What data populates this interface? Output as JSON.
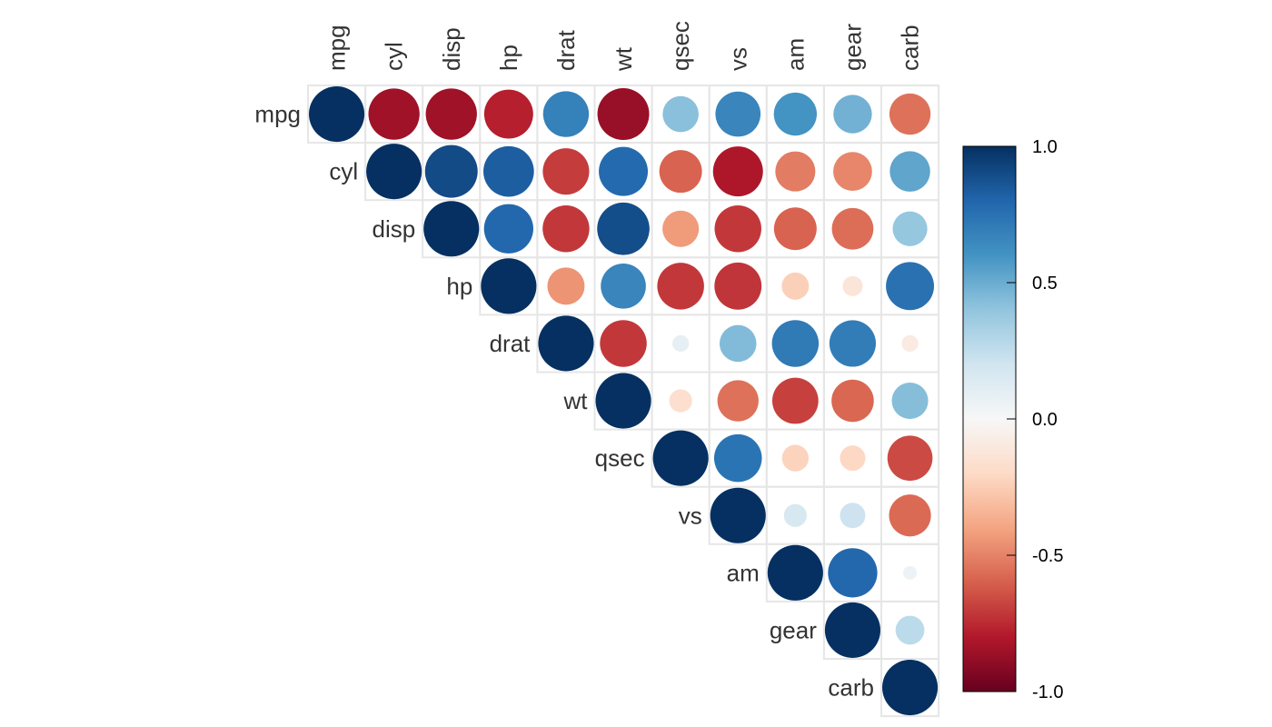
{
  "chart_data": {
    "type": "heatmap",
    "subtype": "correlation-circle-upper",
    "variables": [
      "mpg",
      "cyl",
      "disp",
      "hp",
      "drat",
      "wt",
      "qsec",
      "vs",
      "am",
      "gear",
      "carb"
    ],
    "matrix": [
      [
        1.0,
        -0.85,
        -0.85,
        -0.78,
        0.68,
        -0.87,
        0.42,
        0.66,
        0.6,
        0.48,
        -0.55
      ],
      [
        -0.85,
        1.0,
        0.9,
        0.83,
        -0.7,
        0.78,
        -0.59,
        -0.81,
        -0.52,
        -0.49,
        0.53
      ],
      [
        -0.85,
        0.9,
        1.0,
        0.79,
        -0.71,
        0.89,
        -0.43,
        -0.71,
        -0.59,
        -0.56,
        0.39
      ],
      [
        -0.78,
        0.83,
        0.79,
        1.0,
        -0.45,
        0.66,
        -0.71,
        -0.72,
        -0.24,
        -0.13,
        0.75
      ],
      [
        0.68,
        -0.7,
        -0.71,
        -0.45,
        1.0,
        -0.71,
        0.09,
        0.44,
        0.71,
        0.7,
        -0.09
      ],
      [
        -0.87,
        0.78,
        0.89,
        0.66,
        -0.71,
        1.0,
        -0.17,
        -0.55,
        -0.69,
        -0.58,
        0.43
      ],
      [
        0.42,
        -0.59,
        -0.43,
        -0.71,
        0.09,
        -0.17,
        1.0,
        0.74,
        -0.23,
        -0.21,
        -0.66
      ],
      [
        0.66,
        -0.81,
        -0.71,
        -0.72,
        0.44,
        -0.55,
        0.74,
        1.0,
        0.17,
        0.21,
        -0.57
      ],
      [
        0.6,
        -0.52,
        -0.59,
        -0.24,
        0.71,
        -0.69,
        -0.23,
        0.17,
        1.0,
        0.79,
        0.06
      ],
      [
        0.48,
        -0.49,
        -0.56,
        -0.13,
        0.7,
        -0.58,
        -0.21,
        0.21,
        0.79,
        1.0,
        0.27
      ],
      [
        -0.55,
        0.53,
        0.39,
        0.75,
        -0.09,
        0.43,
        -0.66,
        -0.57,
        0.06,
        0.27,
        1.0
      ]
    ],
    "triangle": "upper",
    "colorbar": {
      "min": -1.0,
      "max": 1.0,
      "ticks": [
        1.0,
        0.5,
        0.0,
        -0.5,
        -1.0
      ],
      "tick_labels": [
        "1.0",
        "0.5",
        "0.0",
        "-0.5",
        "-1.0"
      ]
    },
    "palette": [
      "#67001F",
      "#B2182B",
      "#D6604D",
      "#F4A582",
      "#FDDBC7",
      "#F7F7F7",
      "#D1E5F0",
      "#92C5DE",
      "#4393C3",
      "#2166AC",
      "#053061"
    ]
  }
}
